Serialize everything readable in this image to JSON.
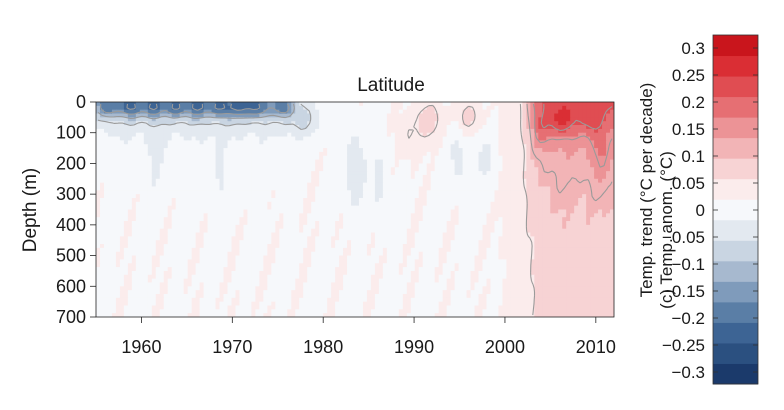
{
  "chart_data": {
    "type": "heatmap",
    "title": "Latitude",
    "xlabel": "",
    "ylabel": "Depth (m)",
    "x_ticks": [
      1960,
      1970,
      1980,
      1990,
      2000,
      2010
    ],
    "y_ticks": [
      0,
      100,
      200,
      300,
      400,
      500,
      600,
      700
    ],
    "xlim": [
      1955,
      2012
    ],
    "ylim": [
      0,
      700
    ],
    "y_inverted": true,
    "colorbar": {
      "label_line1": "Temp. trend (°C per decade)",
      "label_line2": "(c) Temp. anom. (°C)",
      "ticks": [
        "0.3",
        "0.25",
        "0.2",
        "0.15",
        "0.1",
        "0.05",
        "0",
        "−0.05",
        "−0.1",
        "−0.15",
        "−0.2",
        "−0.25",
        "−0.3"
      ],
      "range": [
        -0.3,
        0.3
      ],
      "colors": [
        "#1b3a6b",
        "#2b5080",
        "#3d6494",
        "#5a7ea6",
        "#7f9bbb",
        "#a7b9cf",
        "#c9d5e2",
        "#e3e9f0",
        "#f6f8fb",
        "#fbecec",
        "#f7d3d4",
        "#f2b4b6",
        "#ec9396",
        "#e66f73",
        "#e04d52",
        "#da2e34",
        "#c9151c"
      ]
    },
    "grid": false,
    "legend": "colorbar-right"
  }
}
